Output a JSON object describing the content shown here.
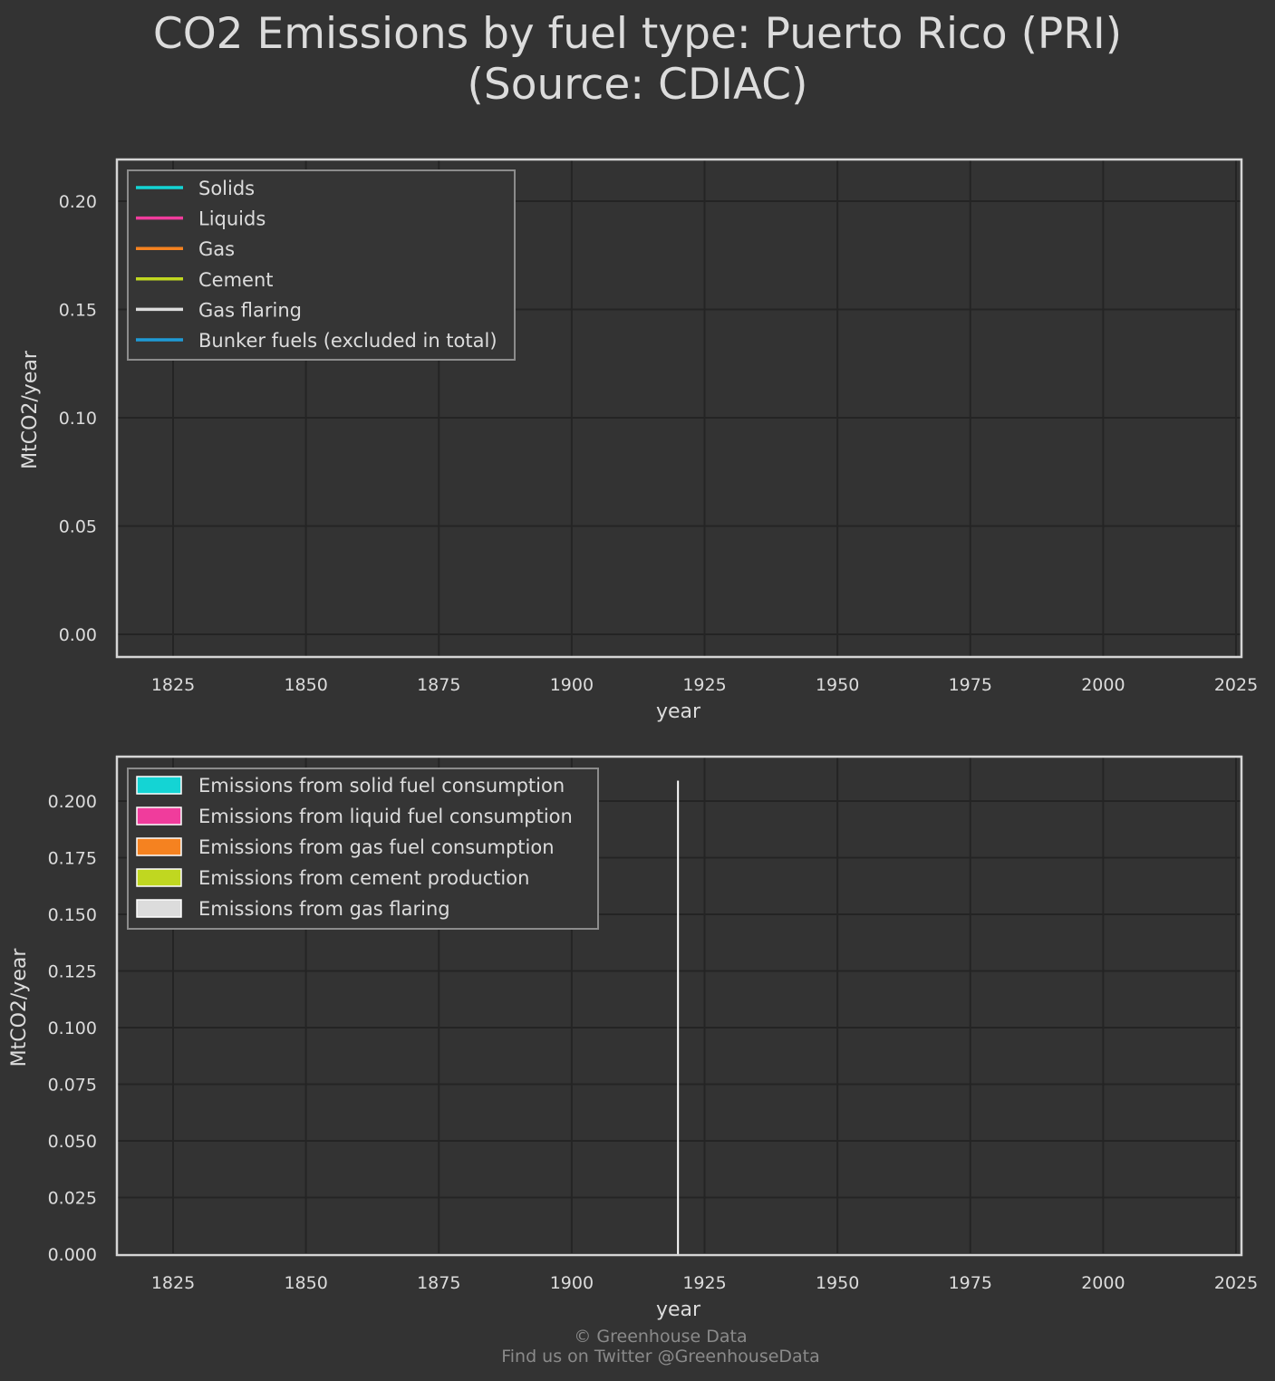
{
  "title_line1": "CO2 Emissions by fuel type: Puerto Rico (PRI)",
  "title_line2": "(Source: CDIAC)",
  "footer_line1": "© Greenhouse Data",
  "footer_line2": "Find us on Twitter @GreenhouseData",
  "colors": {
    "background": "#333333",
    "grid": "#242424",
    "frame": "#d6d6d6",
    "solids": "#14d4d4",
    "liquids": "#f03c9c",
    "gas": "#f58220",
    "cement": "#c0d720",
    "gas_flaring": "#dcdcdc",
    "bunker": "#1e9bd7"
  },
  "chart_data": [
    {
      "type": "line",
      "xlabel": "year",
      "ylabel": "MtCO2/year",
      "xlim": [
        1815,
        2025
      ],
      "ylim": [
        -0.01,
        0.2
      ],
      "x_ticks": [
        "1825",
        "1850",
        "1875",
        "1900",
        "1925",
        "1950",
        "1975",
        "2000",
        "2025"
      ],
      "y_ticks": [
        "0.00",
        "0.05",
        "0.10",
        "0.15",
        "0.20"
      ],
      "grid": true,
      "legend_position": "top-left",
      "legend": [
        {
          "label": "Solids",
          "color_key": "solids"
        },
        {
          "label": "Liquids",
          "color_key": "liquids"
        },
        {
          "label": "Gas",
          "color_key": "gas"
        },
        {
          "label": "Cement",
          "color_key": "cement"
        },
        {
          "label": "Gas flaring",
          "color_key": "gas_flaring"
        },
        {
          "label": "Bunker fuels (excluded in total)",
          "color_key": "bunker"
        }
      ],
      "series": []
    },
    {
      "type": "area",
      "xlabel": "year",
      "ylabel": "MtCO2/year",
      "xlim": [
        1815,
        2025
      ],
      "ylim": [
        0,
        0.2
      ],
      "x_ticks": [
        "1825",
        "1850",
        "1875",
        "1900",
        "1925",
        "1950",
        "1975",
        "2000",
        "2025"
      ],
      "y_ticks": [
        "0.000",
        "0.025",
        "0.050",
        "0.075",
        "0.100",
        "0.125",
        "0.150",
        "0.175",
        "0.200"
      ],
      "grid": true,
      "legend_position": "top-left",
      "legend": [
        {
          "label": "Emissions from solid fuel consumption",
          "color_key": "solids"
        },
        {
          "label": "Emissions from liquid fuel consumption",
          "color_key": "liquids"
        },
        {
          "label": "Emissions from gas fuel consumption",
          "color_key": "gas"
        },
        {
          "label": "Emissions from cement production",
          "color_key": "cement"
        },
        {
          "label": "Emissions from gas flaring",
          "color_key": "gas_flaring"
        }
      ],
      "series": [],
      "vlines": [
        {
          "x": 1920,
          "y_top": 0.209
        }
      ]
    }
  ]
}
